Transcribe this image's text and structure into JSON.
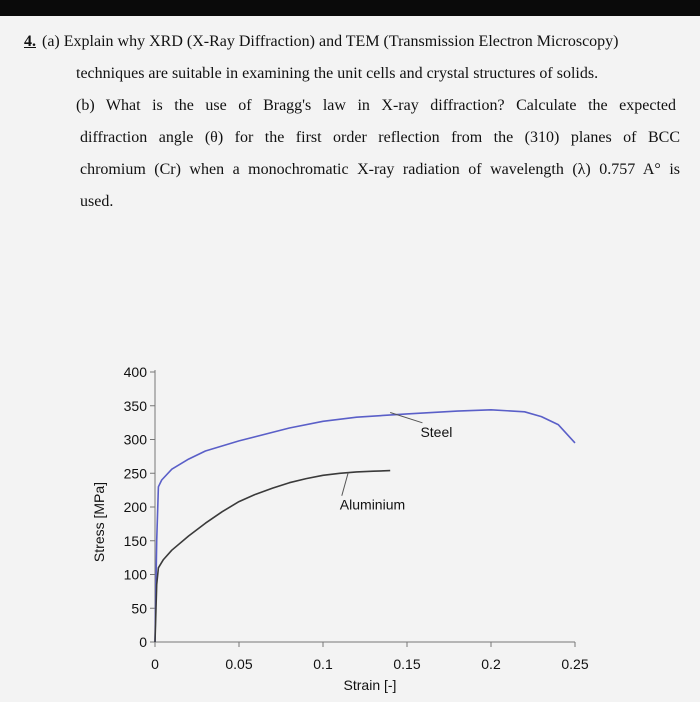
{
  "question": {
    "number": "4.",
    "part_a_label": "(a)",
    "part_a_line1": "Explain why XRD (X-Ray Diffraction) and TEM (Transmission Electron Microscopy)",
    "part_a_line2": "techniques are suitable in examining the unit cells and crystal structures of solids.",
    "part_b_label": "(b)",
    "part_b_line1": "What is the use of Bragg's law in X-ray diffraction? Calculate the expected",
    "part_b_line2": "diffraction angle (θ) for the first order reflection from the (310) planes of BCC",
    "part_b_line3": "chromium (Cr) when a monochromatic X-ray radiation of wavelength (λ) 0.757 A° is",
    "part_b_line4": "used."
  },
  "chart_data": {
    "type": "line",
    "title": "",
    "xlabel": "Strain [-]",
    "ylabel": "Stress [MPa]",
    "xlim": [
      0,
      0.25
    ],
    "ylim": [
      0,
      400
    ],
    "x_ticks": [
      "0",
      "0.05",
      "0.1",
      "0.15",
      "0.2",
      "0.25"
    ],
    "y_ticks": [
      "0",
      "50",
      "100",
      "150",
      "200",
      "250",
      "300",
      "350",
      "400"
    ],
    "series": [
      {
        "name": "Steel",
        "color": "#5a5fc8",
        "x": [
          0,
          0.001,
          0.002,
          0.004,
          0.01,
          0.02,
          0.03,
          0.05,
          0.08,
          0.1,
          0.12,
          0.15,
          0.18,
          0.2,
          0.22,
          0.23,
          0.24,
          0.25
        ],
        "y": [
          0,
          150,
          230,
          240,
          256,
          271,
          283,
          298,
          317,
          327,
          333,
          338,
          342,
          344,
          341,
          334,
          322,
          295
        ]
      },
      {
        "name": "Aluminium",
        "color": "#3a3a3a",
        "x": [
          0,
          0.001,
          0.002,
          0.005,
          0.01,
          0.02,
          0.03,
          0.04,
          0.05,
          0.06,
          0.07,
          0.08,
          0.09,
          0.1,
          0.11,
          0.12,
          0.13,
          0.14
        ],
        "y": [
          0,
          85,
          110,
          122,
          136,
          157,
          176,
          193,
          208,
          219,
          228,
          236,
          242,
          247,
          250,
          252,
          253,
          254
        ]
      }
    ],
    "annotations": [
      {
        "text": "Steel",
        "series": "Steel",
        "point_x": 0.14,
        "point_y": 340,
        "label_x": 0.158,
        "label_y": 304
      },
      {
        "text": "Aluminium",
        "series": "Aluminium",
        "point_x": 0.115,
        "point_y": 251,
        "label_x": 0.11,
        "label_y": 196
      }
    ]
  }
}
